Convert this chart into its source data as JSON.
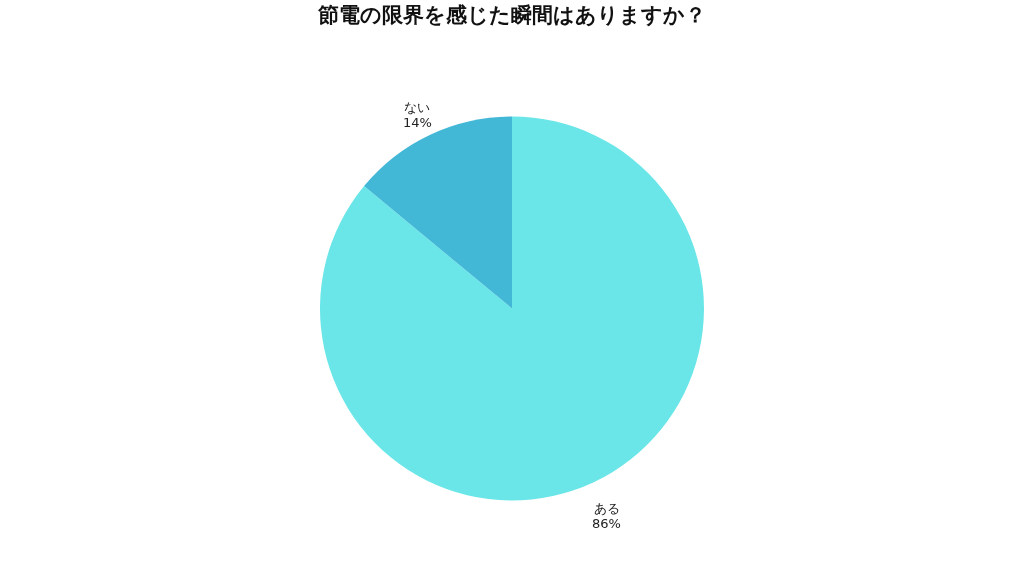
{
  "chart_data": {
    "type": "pie",
    "title": "節電の限界を感じた瞬間はありますか？",
    "categories": [
      "ある",
      "ない"
    ],
    "values": [
      86,
      14
    ],
    "colors": [
      "#6ae6e8",
      "#42b8d6"
    ],
    "value_labels": [
      "86%",
      "14%"
    ],
    "legend": false
  }
}
